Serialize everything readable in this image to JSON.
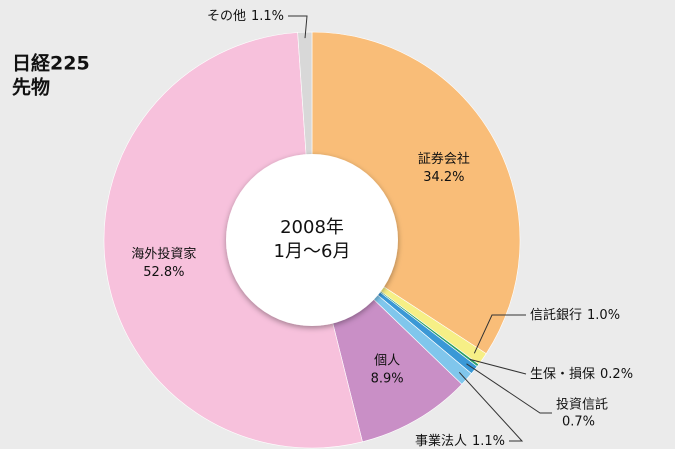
{
  "chart_data": {
    "type": "donut",
    "title": [
      "日経225",
      "先物"
    ],
    "center_label": [
      "2008年",
      "1月〜6月"
    ],
    "categories": [
      "証券会社",
      "信託銀行",
      "生保・損保",
      "投資信託",
      "事業法人",
      "個人",
      "海外投資家",
      "その他"
    ],
    "values": [
      34.2,
      1.0,
      0.2,
      0.7,
      1.1,
      8.9,
      52.8,
      1.1
    ],
    "value_labels": [
      "34.2%",
      "1.0%",
      "0.2%",
      "0.7%",
      "1.1%",
      "8.9%",
      "52.8%",
      "1.1%"
    ],
    "colors": [
      "#f9bd78",
      "#f6ef86",
      "#2a9e66",
      "#3a98d6",
      "#80c6ec",
      "#c98fc6",
      "#f7c1dc",
      "#d8d8d8"
    ]
  }
}
